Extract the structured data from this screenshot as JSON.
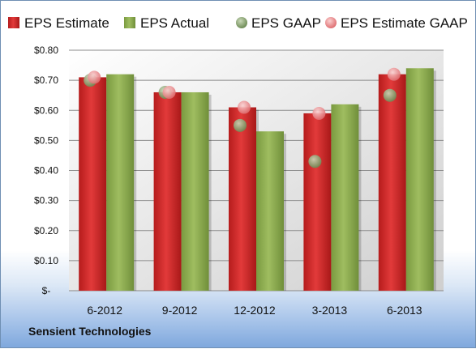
{
  "company": "Sensient Technologies",
  "chart_data": {
    "type": "bar",
    "categories": [
      "6-2012",
      "9-2012",
      "12-2012",
      "3-2013",
      "6-2013"
    ],
    "series": [
      {
        "name": "EPS Estimate",
        "kind": "bar",
        "color": "#d42a2a",
        "values": [
          0.71,
          0.66,
          0.61,
          0.59,
          0.72
        ]
      },
      {
        "name": "EPS Actual",
        "kind": "bar",
        "color": "#8fae50",
        "values": [
          0.72,
          0.66,
          0.53,
          0.62,
          0.74
        ]
      },
      {
        "name": "EPS GAAP",
        "kind": "marker",
        "color": "#7e9c64",
        "values": [
          0.7,
          0.66,
          0.55,
          0.43,
          0.65
        ]
      },
      {
        "name": "EPS Estimate GAAP",
        "kind": "marker",
        "color": "#e97e80",
        "values": [
          0.71,
          0.66,
          0.61,
          0.59,
          0.72
        ]
      }
    ],
    "yticks": [
      "$-",
      "$0.10",
      "$0.20",
      "$0.30",
      "$0.40",
      "$0.50",
      "$0.60",
      "$0.70",
      "$0.80"
    ],
    "ylim": [
      0,
      0.8
    ],
    "grid": true,
    "legend_position": "top"
  }
}
